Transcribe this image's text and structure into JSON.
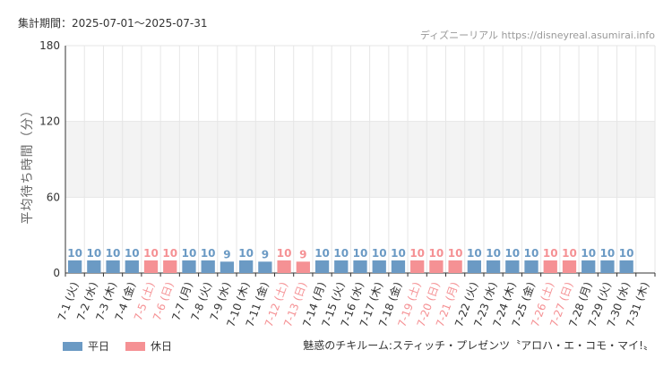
{
  "header": {
    "period_label": "集計期間：2025-07-01～2025-07-31",
    "site": "ディズニーリアル https://disneyreal.asumirai.info"
  },
  "footer": {
    "attraction": "魅惑のチキルーム:スティッチ・プレゼンツ〝アロハ・エ・コモ・マイ!〟"
  },
  "colors": {
    "weekday": "#6b9ac4",
    "holiday": "#f59194",
    "band": "#f3f3f3",
    "grid": "#e6e6e6",
    "axis": "#333333"
  },
  "chart_data": {
    "type": "bar",
    "ylabel": "平均待ち時間（分）",
    "ylim": [
      0,
      180
    ],
    "yticks": [
      0,
      60,
      120,
      180
    ],
    "shaded_band": [
      60,
      120
    ],
    "legend": [
      {
        "key": "weekday",
        "label": "平日"
      },
      {
        "key": "holiday",
        "label": "休日"
      }
    ],
    "categories": [
      "7-1 (火)",
      "7-2 (水)",
      "7-3 (木)",
      "7-4 (金)",
      "7-5 (土)",
      "7-6 (日)",
      "7-7 (月)",
      "7-8 (火)",
      "7-9 (水)",
      "7-10 (木)",
      "7-11 (金)",
      "7-12 (土)",
      "7-13 (日)",
      "7-14 (月)",
      "7-15 (火)",
      "7-16 (水)",
      "7-17 (木)",
      "7-18 (金)",
      "7-19 (土)",
      "7-20 (日)",
      "7-21 (月)",
      "7-22 (火)",
      "7-23 (水)",
      "7-24 (木)",
      "7-25 (金)",
      "7-26 (土)",
      "7-27 (日)",
      "7-28 (月)",
      "7-29 (火)",
      "7-30 (水)",
      "7-31 (木)"
    ],
    "values": [
      10,
      10,
      10,
      10,
      10,
      10,
      10,
      10,
      9,
      10,
      9,
      10,
      9,
      10,
      10,
      10,
      10,
      10,
      10,
      10,
      10,
      10,
      10,
      10,
      10,
      10,
      10,
      10,
      10,
      10,
      null
    ],
    "day_type": [
      "weekday",
      "weekday",
      "weekday",
      "weekday",
      "holiday",
      "holiday",
      "weekday",
      "weekday",
      "weekday",
      "weekday",
      "weekday",
      "holiday",
      "holiday",
      "weekday",
      "weekday",
      "weekday",
      "weekday",
      "weekday",
      "holiday",
      "holiday",
      "holiday",
      "weekday",
      "weekday",
      "weekday",
      "weekday",
      "holiday",
      "holiday",
      "weekday",
      "weekday",
      "weekday",
      "weekday"
    ]
  }
}
